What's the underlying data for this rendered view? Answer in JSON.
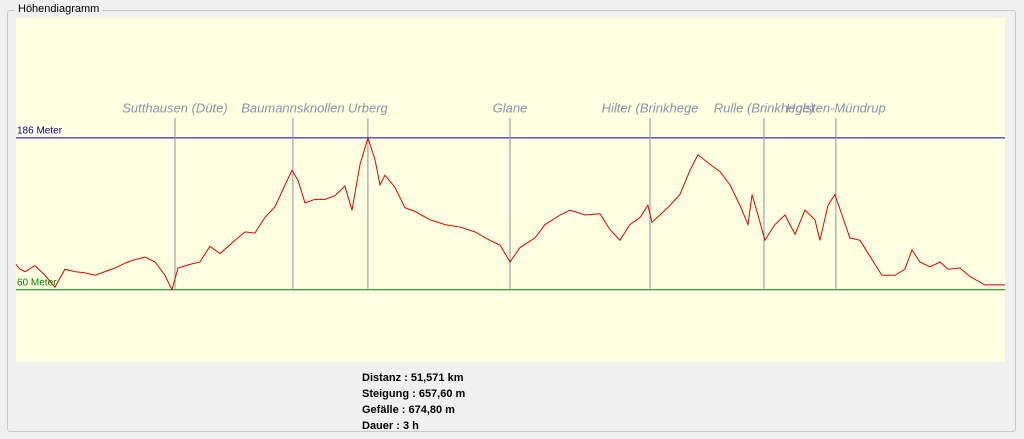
{
  "window": {
    "group_title": "Höhendiagramm"
  },
  "chart_data": {
    "type": "line",
    "x": [
      0,
      0.21,
      0.47,
      0.99,
      1.51,
      2.03,
      2.55,
      3.07,
      3.6,
      4.12,
      4.64,
      5.16,
      5.68,
      6.2,
      6.73,
      7.25,
      7.77,
      8.13,
      8.45,
      9.07,
      9.59,
      10.11,
      10.64,
      11.42,
      11.94,
      12.46,
      12.98,
      13.51,
      14.03,
      14.39,
      14.7,
      15.07,
      15.59,
      16.11,
      16.63,
      17.15,
      17.52,
      17.94,
      18.35,
      18.72,
      18.98,
      19.24,
      19.76,
      20.28,
      20.8,
      21.59,
      22.37,
      23.15,
      23.93,
      24.71,
      25.24,
      25.76,
      26.28,
      27.06,
      27.58,
      28.37,
      28.89,
      29.67,
      30.45,
      30.97,
      31.49,
      32.01,
      32.54,
      32.95,
      33.16,
      33.58,
      34.1,
      34.62,
      35.14,
      35.56,
      36.19,
      36.71,
      37.23,
      37.75,
      38.17,
      38.38,
      38.69,
      39.05,
      39.57,
      40.1,
      40.62,
      41.14,
      41.66,
      41.92,
      42.34,
      42.7,
      43.07,
      43.48,
      44.01,
      44.32,
      44.79,
      45.15,
      45.83,
      46.35,
      46.72,
      47.13,
      47.66,
      48.18,
      48.6,
      49.22,
      49.74,
      50.52,
      51.57
    ],
    "series": [
      {
        "color": "#e00000",
        "values": [
          81,
          77,
          75,
          80,
          72,
          62,
          77,
          75,
          74,
          72,
          75,
          78,
          82,
          85,
          87,
          83,
          72,
          60,
          78,
          81,
          83,
          96,
          90,
          101,
          108,
          107,
          120,
          129,
          147,
          159,
          151,
          132,
          135,
          135,
          138,
          146,
          126,
          164,
          186,
          168,
          147,
          155,
          145,
          128,
          125,
          118,
          114,
          112,
          108,
          101,
          97,
          83,
          95,
          103,
          114,
          122,
          126,
          122,
          123,
          110,
          101,
          114,
          120,
          130,
          116,
          122,
          130,
          139,
          159,
          172,
          164,
          158,
          147,
          130,
          114,
          139,
          122,
          101,
          114,
          122,
          106,
          126,
          118,
          101,
          130,
          139,
          122,
          103,
          101,
          93,
          81,
          72,
          72,
          77,
          93,
          83,
          79,
          83,
          77,
          78,
          71,
          64,
          64
        ]
      }
    ],
    "xlim": [
      0,
      51.57
    ],
    "ylim": [
      0,
      285.5
    ],
    "yticks": [
      {
        "value": 60,
        "label": "60 Meter"
      },
      {
        "value": 186,
        "label": "186 Meter"
      }
    ],
    "ytick_colors": [
      "#008000",
      "#0000b0"
    ],
    "waypoints": [
      {
        "name": "Sutthausen (Düte)",
        "x": 8.29
      },
      {
        "name": "Baumannsknollen",
        "x": 14.44
      },
      {
        "name": "Urberg",
        "x": 18.35
      },
      {
        "name": "Glane",
        "x": 25.76
      },
      {
        "name": "Hilter (Brinkhege",
        "x": 33.06
      },
      {
        "name": "Rulle (Brinkhege)",
        "x": 39.0
      },
      {
        "name": "Holsten-Mündrup",
        "x": 42.75
      }
    ],
    "waypoint_color": "#8a93a8"
  },
  "stats": [
    "Distanz : 51,571 km",
    "Steigung : 657,60 m",
    "Gefälle : 674,80 m",
    "Dauer : 3 h"
  ]
}
